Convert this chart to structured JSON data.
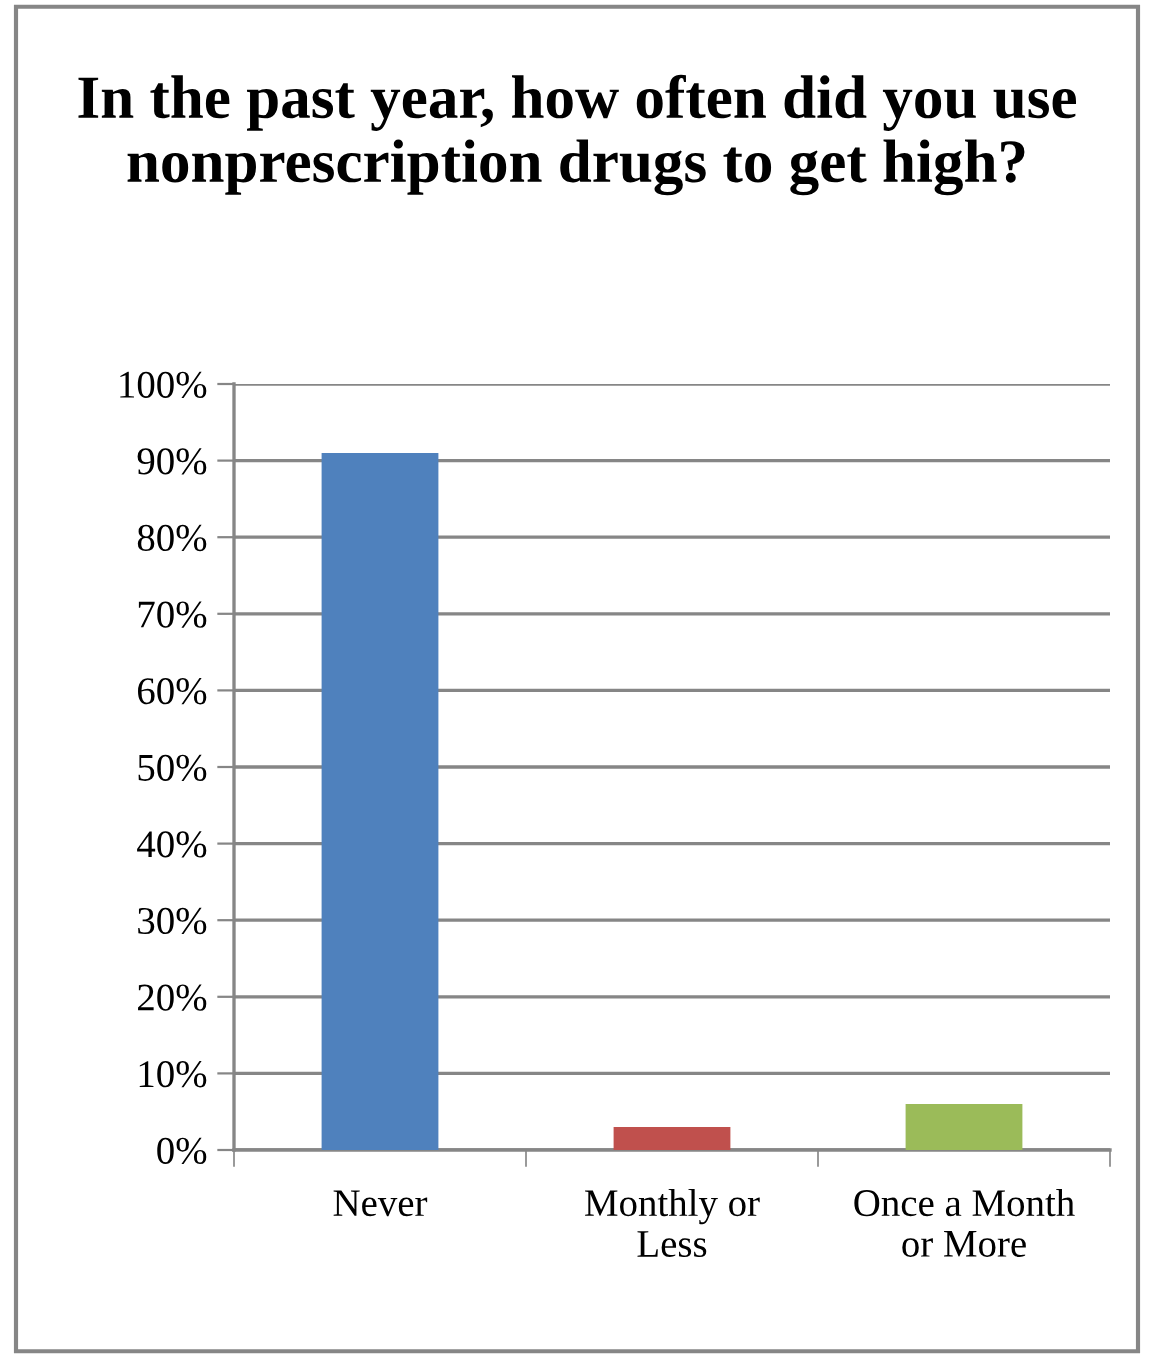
{
  "chart_data": {
    "type": "bar",
    "title": "In the past year, how often did you use nonprescription drugs to get high?",
    "categories": [
      "Never",
      "Monthly or\nLess",
      "Once a Month\nor More"
    ],
    "values": [
      91,
      3,
      6
    ],
    "colors": [
      "#4f81bd",
      "#c0504d",
      "#9bbb59"
    ],
    "ylim": [
      0,
      100
    ],
    "yticks": [
      {
        "value": 0,
        "label": "0%"
      },
      {
        "value": 10,
        "label": "10%"
      },
      {
        "value": 20,
        "label": "20%"
      },
      {
        "value": 30,
        "label": "30%"
      },
      {
        "value": 40,
        "label": "40%"
      },
      {
        "value": 50,
        "label": "50%"
      },
      {
        "value": 60,
        "label": "60%"
      },
      {
        "value": 70,
        "label": "70%"
      },
      {
        "value": 80,
        "label": "80%"
      },
      {
        "value": 90,
        "label": "90%"
      },
      {
        "value": 100,
        "label": "100%"
      }
    ],
    "grid": "y"
  }
}
